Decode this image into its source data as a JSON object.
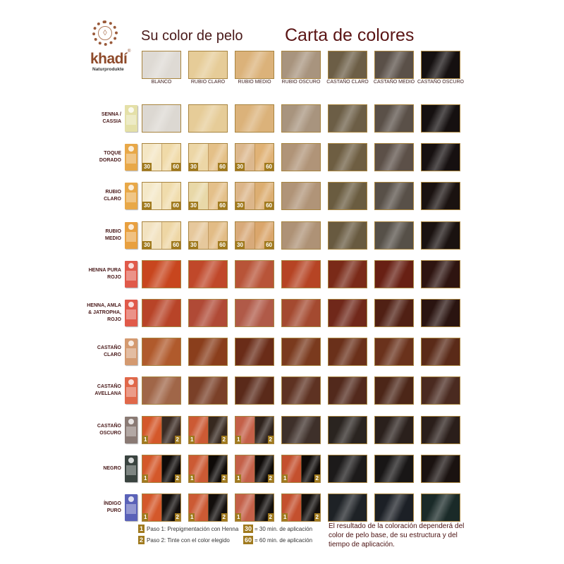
{
  "header": {
    "logo_word": "khadí",
    "logo_registered": "®",
    "logo_sub": "Naturprodukte",
    "subtitle": "Su color de pelo",
    "title": "Carta de colores"
  },
  "colors": {
    "accent": "#a07a1e",
    "border": "#a8843e",
    "title": "#5a1414",
    "label": "#4a1a1a"
  },
  "base_colors": [
    {
      "label": "BLANCO",
      "color": "#dedad4"
    },
    {
      "label": "RUBIO CLARO",
      "color": "#e6cc98"
    },
    {
      "label": "RUBIO MEDIO",
      "color": "#dbb27a"
    },
    {
      "label": "RUBIO OSCURO",
      "color": "#a8947e"
    },
    {
      "label": "CASTAÑO CLARO",
      "color": "#6c5e46"
    },
    {
      "label": "CASTAÑO MEDIO",
      "color": "#5a5048"
    },
    {
      "label": "CASTAÑO OSCURO",
      "color": "#151010"
    }
  ],
  "rows": [
    {
      "label": "SENNA /\nCASSIA",
      "package_color": "#e4e0a8",
      "cells": [
        {
          "type": "full",
          "colors": [
            "#dcd8d2"
          ]
        },
        {
          "type": "full",
          "colors": [
            "#e6cc98"
          ]
        },
        {
          "type": "full",
          "colors": [
            "#dbb27a"
          ]
        },
        {
          "type": "full",
          "colors": [
            "#a8947e"
          ]
        },
        {
          "type": "full",
          "colors": [
            "#6c5e46"
          ]
        },
        {
          "type": "full",
          "colors": [
            "#5a5048"
          ]
        },
        {
          "type": "full",
          "colors": [
            "#151010"
          ]
        }
      ]
    },
    {
      "label": "TOQUE\nDORADO",
      "package_color": "#e8a848",
      "cells": [
        {
          "type": "time",
          "colors": [
            "#f4e6c4",
            "#f0daa8"
          ]
        },
        {
          "type": "time",
          "colors": [
            "#ecd6a6",
            "#e4c088"
          ]
        },
        {
          "type": "time",
          "colors": [
            "#dcb88e",
            "#e0b276"
          ]
        },
        {
          "type": "full",
          "colors": [
            "#b09478"
          ]
        },
        {
          "type": "full",
          "colors": [
            "#6e5e42"
          ]
        },
        {
          "type": "full",
          "colors": [
            "#5c5048"
          ]
        },
        {
          "type": "full",
          "colors": [
            "#161010"
          ]
        }
      ]
    },
    {
      "label": "RUBIO\nCLARO",
      "package_color": "#e8a848",
      "cells": [
        {
          "type": "time",
          "colors": [
            "#f4e8c8",
            "#f0dcac"
          ]
        },
        {
          "type": "time",
          "colors": [
            "#e8d8a8",
            "#e4c08a"
          ]
        },
        {
          "type": "time",
          "colors": [
            "#dcb68a",
            "#dcae72"
          ]
        },
        {
          "type": "full",
          "colors": [
            "#b09478"
          ]
        },
        {
          "type": "full",
          "colors": [
            "#6a5c40"
          ]
        },
        {
          "type": "full",
          "colors": [
            "#585048"
          ]
        },
        {
          "type": "full",
          "colors": [
            "#1a1210"
          ]
        }
      ]
    },
    {
      "label": "RUBIO\nMEDIO",
      "package_color": "#e8a040",
      "cells": [
        {
          "type": "time",
          "colors": [
            "#f2e2c0",
            "#eed6a4"
          ]
        },
        {
          "type": "time",
          "colors": [
            "#e6c89c",
            "#e2bc86"
          ]
        },
        {
          "type": "time",
          "colors": [
            "#d8aa7a",
            "#daa66c"
          ]
        },
        {
          "type": "full",
          "colors": [
            "#ae9276"
          ]
        },
        {
          "type": "full",
          "colors": [
            "#685a40"
          ]
        },
        {
          "type": "full",
          "colors": [
            "#565048"
          ]
        },
        {
          "type": "full",
          "colors": [
            "#1a1210"
          ]
        }
      ]
    },
    {
      "label": "HENNA PURA\nROJO",
      "package_color": "#e05a4a",
      "cells": [
        {
          "type": "full",
          "colors": [
            "#c8461e"
          ]
        },
        {
          "type": "full",
          "colors": [
            "#c0482a"
          ]
        },
        {
          "type": "full",
          "colors": [
            "#b85438"
          ]
        },
        {
          "type": "full",
          "colors": [
            "#b64424"
          ]
        },
        {
          "type": "full",
          "colors": [
            "#7a2a18"
          ]
        },
        {
          "type": "full",
          "colors": [
            "#682014"
          ]
        },
        {
          "type": "full",
          "colors": [
            "#2e1410"
          ]
        }
      ]
    },
    {
      "label": "HENNA, AMLA\n& JATROPHA,\nROJO",
      "package_color": "#e05a4a",
      "cells": [
        {
          "type": "full",
          "colors": [
            "#b84428"
          ]
        },
        {
          "type": "full",
          "colors": [
            "#b04a36"
          ]
        },
        {
          "type": "full",
          "colors": [
            "#b05a48"
          ]
        },
        {
          "type": "full",
          "colors": [
            "#a44a30"
          ]
        },
        {
          "type": "full",
          "colors": [
            "#70281a"
          ]
        },
        {
          "type": "full",
          "colors": [
            "#502014"
          ]
        },
        {
          "type": "full",
          "colors": [
            "#2a1410"
          ]
        }
      ]
    },
    {
      "label": "CASTAÑO\nCLARO",
      "package_color": "#d49a70",
      "cells": [
        {
          "type": "full",
          "colors": [
            "#b05a2c"
          ]
        },
        {
          "type": "full",
          "colors": [
            "#8a3e1c"
          ]
        },
        {
          "type": "full",
          "colors": [
            "#6a2c18"
          ]
        },
        {
          "type": "full",
          "colors": [
            "#7a3a1e"
          ]
        },
        {
          "type": "full",
          "colors": [
            "#6a301a"
          ]
        },
        {
          "type": "full",
          "colors": [
            "#6a321c"
          ]
        },
        {
          "type": "full",
          "colors": [
            "#5a2a18"
          ]
        }
      ]
    },
    {
      "label": "CASTAÑO\nAVELLANA",
      "package_color": "#e0684a",
      "cells": [
        {
          "type": "full",
          "colors": [
            "#a06648"
          ]
        },
        {
          "type": "full",
          "colors": [
            "#7a4028"
          ]
        },
        {
          "type": "full",
          "colors": [
            "#5a2a1a"
          ]
        },
        {
          "type": "full",
          "colors": [
            "#5e3222"
          ]
        },
        {
          "type": "full",
          "colors": [
            "#52291c"
          ]
        },
        {
          "type": "full",
          "colors": [
            "#4c2618"
          ]
        },
        {
          "type": "full",
          "colors": [
            "#4a2a20"
          ]
        }
      ]
    },
    {
      "label": "CASTAÑO\nOSCURO",
      "package_color": "#8a7a74",
      "cells": [
        {
          "type": "step",
          "colors": [
            "#d4582a",
            "#3a2a22"
          ]
        },
        {
          "type": "step",
          "colors": [
            "#cc5a34",
            "#36281f"
          ]
        },
        {
          "type": "step",
          "colors": [
            "#c46048",
            "#2e221c"
          ]
        },
        {
          "type": "full",
          "colors": [
            "#3e302a"
          ]
        },
        {
          "type": "full",
          "colors": [
            "#2a2420"
          ]
        },
        {
          "type": "full",
          "colors": [
            "#2a201c"
          ]
        },
        {
          "type": "full",
          "colors": [
            "#2a1e1a"
          ]
        }
      ]
    },
    {
      "label": "NEGRO",
      "package_color": "#3a4440",
      "cells": [
        {
          "type": "step",
          "colors": [
            "#d4582a",
            "#0e0a08"
          ]
        },
        {
          "type": "step",
          "colors": [
            "#cc5a34",
            "#0e0a08"
          ]
        },
        {
          "type": "step",
          "colors": [
            "#c46048",
            "#0e0a08"
          ]
        },
        {
          "type": "step",
          "colors": [
            "#c4502e",
            "#0e0a08"
          ]
        },
        {
          "type": "full",
          "colors": [
            "#1c1a1a"
          ]
        },
        {
          "type": "full",
          "colors": [
            "#181616"
          ]
        },
        {
          "type": "full",
          "colors": [
            "#1a1210"
          ]
        }
      ]
    },
    {
      "label": "ÍNDIGO\nPURO",
      "package_color": "#5a62b8",
      "cells": [
        {
          "type": "step",
          "colors": [
            "#d4582a",
            "#120e0c"
          ]
        },
        {
          "type": "step",
          "colors": [
            "#cc5a34",
            "#120e0c"
          ]
        },
        {
          "type": "step",
          "colors": [
            "#c46048",
            "#120e0c"
          ]
        },
        {
          "type": "step",
          "colors": [
            "#c4502e",
            "#120e0c"
          ]
        },
        {
          "type": "full",
          "colors": [
            "#1e2226"
          ]
        },
        {
          "type": "full",
          "colors": [
            "#1c2026"
          ]
        },
        {
          "type": "full",
          "colors": [
            "#1a2a28"
          ]
        }
      ]
    }
  ],
  "badges": {
    "step1": "1",
    "step2": "2",
    "time30": "30",
    "time60": "60"
  },
  "legend": {
    "step1_badge": "1",
    "step1_text": "Paso 1: Prepigmentación con Henna",
    "step2_badge": "2",
    "step2_text": "Paso 2: Tinte con el color elegido",
    "time30_badge": "30",
    "time30_text": "= 30 min. de aplicación",
    "time60_badge": "60",
    "time60_text": "= 60 min. de aplicación"
  },
  "note": "El resultado de la coloración dependerá del color de pelo base, de su estructura y del tiempo de aplicación."
}
